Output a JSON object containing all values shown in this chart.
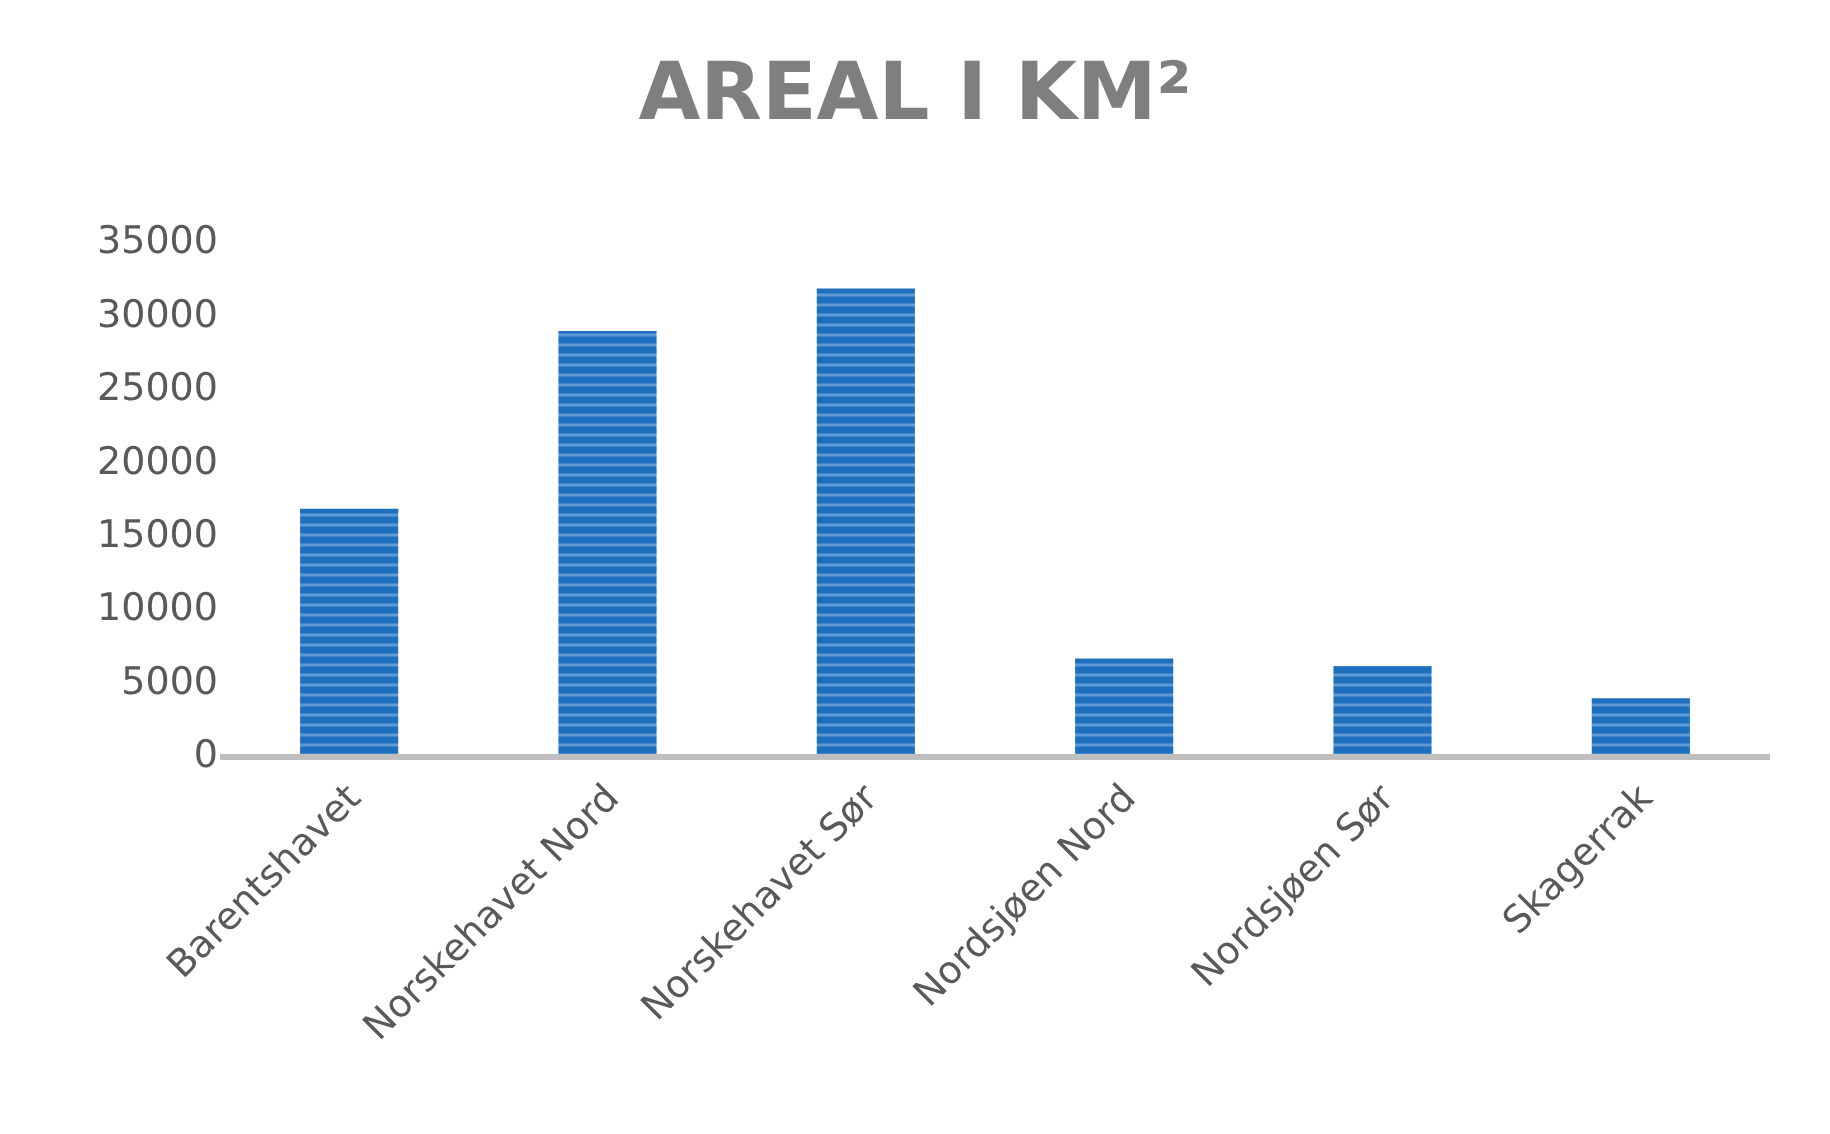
{
  "chart_data": {
    "type": "bar",
    "title": "AREAL I KM²",
    "categories": [
      "Barentshavet",
      "Norskehavet Nord",
      "Norskehavet Sør",
      "Nordsjøen Nord",
      "Nordsjøen Sør",
      "Skagerrak"
    ],
    "values": [
      16700,
      28800,
      31700,
      6500,
      6000,
      3800
    ],
    "color": "#1f6fbf",
    "ylim": [
      0,
      35000
    ],
    "yticks": [
      0,
      5000,
      10000,
      15000,
      20000,
      25000,
      30000,
      35000
    ]
  }
}
